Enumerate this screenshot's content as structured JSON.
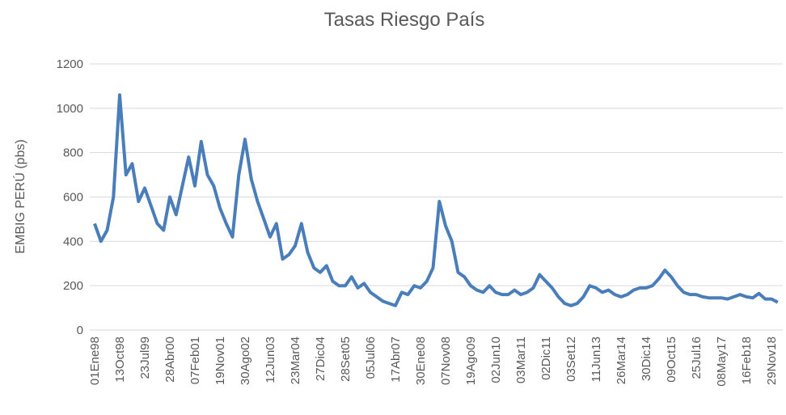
{
  "chart_data": {
    "type": "line",
    "title": "Tasas Riesgo País",
    "y_label": "EMBIG PERÚ (pbs)",
    "categories": [
      "01Ene98",
      null,
      null,
      null,
      "13Oct98",
      null,
      null,
      null,
      "23Jul99",
      null,
      null,
      null,
      "28Abr00",
      null,
      null,
      null,
      "07Feb01",
      null,
      null,
      null,
      "19Nov01",
      null,
      null,
      null,
      "30Ago02",
      null,
      null,
      null,
      "12Jun03",
      null,
      null,
      null,
      "23Mar04",
      null,
      null,
      null,
      "27Dic04",
      null,
      null,
      null,
      "28Set05",
      null,
      null,
      null,
      "05Jul06",
      null,
      null,
      null,
      "17Abr07",
      null,
      null,
      null,
      "30Ene08",
      null,
      null,
      null,
      "07Nov08",
      null,
      null,
      null,
      "19Ago09",
      null,
      null,
      null,
      "02Jun10",
      null,
      null,
      null,
      "03Mar11",
      null,
      null,
      null,
      "02Dic11",
      null,
      null,
      null,
      "03Set12",
      null,
      null,
      null,
      "11Jun13",
      null,
      null,
      null,
      "26Mar14",
      null,
      null,
      null,
      "30Dic14",
      null,
      null,
      null,
      "09Oct15",
      null,
      null,
      null,
      "25Jul16",
      null,
      null,
      null,
      "08May17",
      null,
      null,
      null,
      "16Feb18",
      null,
      null,
      null,
      "29Nov18",
      null
    ],
    "series": [
      {
        "name": "EMBIG PERÚ",
        "color": "#4a7ebb",
        "values": [
          480,
          400,
          450,
          600,
          1060,
          700,
          750,
          580,
          640,
          560,
          480,
          450,
          600,
          520,
          650,
          780,
          650,
          850,
          700,
          650,
          550,
          480,
          420,
          700,
          860,
          680,
          580,
          500,
          420,
          480,
          320,
          340,
          380,
          480,
          350,
          280,
          260,
          290,
          220,
          200,
          200,
          240,
          190,
          210,
          170,
          150,
          130,
          120,
          110,
          170,
          160,
          200,
          190,
          220,
          280,
          580,
          470,
          400,
          260,
          240,
          200,
          180,
          170,
          200,
          170,
          160,
          160,
          180,
          160,
          170,
          190,
          250,
          220,
          190,
          150,
          120,
          110,
          120,
          150,
          200,
          190,
          170,
          180,
          160,
          150,
          160,
          180,
          190,
          190,
          200,
          230,
          270,
          240,
          200,
          170,
          160,
          160,
          150,
          145,
          145,
          145,
          140,
          150,
          160,
          150,
          145,
          165,
          140,
          140,
          125
        ]
      }
    ],
    "ylim": [
      0,
      1200
    ],
    "yticks": [
      0,
      200,
      400,
      600,
      800,
      1000,
      1200
    ],
    "grid": true
  }
}
